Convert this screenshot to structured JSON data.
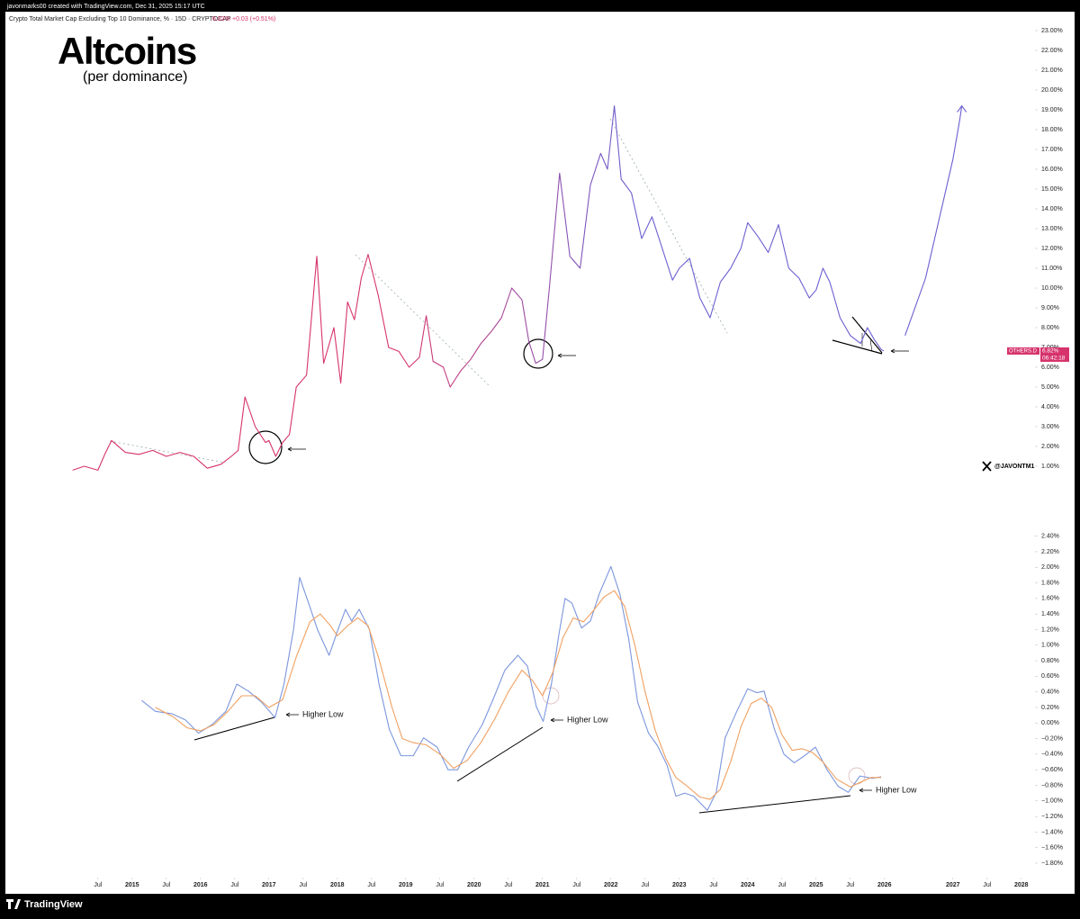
{
  "header": {
    "author": "javonmarks00 created with TradingView.com, Dec 31, 2025 15:17 UTC",
    "symbol": "Crypto Total Market Cap Excluding Top 10 Dominance, % · 15D · CRYPTOCAP",
    "last": "6.82%",
    "change": "+0.03 (+0.51%)"
  },
  "watermark": "@JAVONTM1",
  "footer": {
    "brand": "TradingView"
  },
  "chart_data": [
    {
      "type": "line",
      "title": "Altcoins",
      "subtitle": "(per dominance)",
      "xlim": [
        2013.2,
        2028.2
      ],
      "ylim": [
        -1.5,
        23.5
      ],
      "yticks": [
        {
          "value": 1,
          "label": "1.00%"
        },
        {
          "value": 2,
          "label": "2.00%"
        },
        {
          "value": 3,
          "label": "3.00%"
        },
        {
          "value": 4,
          "label": "4.00%"
        },
        {
          "value": 5,
          "label": "5.00%"
        },
        {
          "value": 6,
          "label": "6.00%"
        },
        {
          "value": 7,
          "label": "7.00%"
        },
        {
          "value": 8,
          "label": "8.00%"
        },
        {
          "value": 9,
          "label": "9.00%"
        },
        {
          "value": 10,
          "label": "10.00%"
        },
        {
          "value": 11,
          "label": "11.00%"
        },
        {
          "value": 12,
          "label": "12.00%"
        },
        {
          "value": 13,
          "label": "13.00%"
        },
        {
          "value": 14,
          "label": "14.00%"
        },
        {
          "value": 15,
          "label": "15.00%"
        },
        {
          "value": 16,
          "label": "16.00%"
        },
        {
          "value": 17,
          "label": "17.00%"
        },
        {
          "value": 18,
          "label": "18.00%"
        },
        {
          "value": 19,
          "label": "19.00%"
        },
        {
          "value": 20,
          "label": "20.00%"
        },
        {
          "value": 21,
          "label": "21.00%"
        },
        {
          "value": 22,
          "label": "22.00%"
        },
        {
          "value": 23,
          "label": "23.00%"
        }
      ],
      "grid": false,
      "series": [
        {
          "name": "OTHERS.D",
          "color": "#d6336c",
          "color_end": "#6b5fd0",
          "x": [
            2014.13,
            2014.3,
            2014.5,
            2014.6,
            2014.7,
            2014.9,
            2015.1,
            2015.3,
            2015.5,
            2015.7,
            2015.9,
            2016.0,
            2016.1,
            2016.3,
            2016.45,
            2016.55,
            2016.65,
            2016.8,
            2016.95,
            2017.0,
            2017.1,
            2017.2,
            2017.3,
            2017.4,
            2017.55,
            2017.7,
            2017.8,
            2017.95,
            2018.05,
            2018.15,
            2018.25,
            2018.35,
            2018.45,
            2018.6,
            2018.75,
            2018.9,
            2019.05,
            2019.2,
            2019.3,
            2019.4,
            2019.55,
            2019.65,
            2019.8,
            2019.95,
            2020.1,
            2020.25,
            2020.4,
            2020.55,
            2020.7,
            2020.8,
            2020.9,
            2021.0,
            2021.1,
            2021.25,
            2021.4,
            2021.55,
            2021.7,
            2021.85,
            2021.95,
            2022.05,
            2022.15,
            2022.3,
            2022.45,
            2022.6,
            2022.75,
            2022.9,
            2023.0,
            2023.15,
            2023.3,
            2023.45,
            2023.6,
            2023.75,
            2023.9,
            2024.0,
            2024.15,
            2024.3,
            2024.45,
            2024.6,
            2024.75,
            2024.9,
            2025.0,
            2025.1,
            2025.2,
            2025.35,
            2025.5,
            2025.65,
            2025.75,
            2025.85,
            2025.95,
            2025.99
          ],
          "values": [
            0.8,
            1.0,
            0.8,
            1.6,
            2.3,
            1.7,
            1.6,
            1.8,
            1.5,
            1.7,
            1.5,
            1.2,
            0.9,
            1.1,
            1.5,
            1.8,
            4.5,
            3.0,
            2.2,
            2.3,
            1.5,
            2.2,
            2.6,
            5.0,
            5.6,
            11.6,
            6.2,
            8.0,
            5.2,
            9.3,
            8.4,
            10.5,
            11.7,
            9.6,
            7.0,
            6.8,
            6.0,
            6.5,
            8.6,
            6.3,
            6.0,
            5.0,
            5.8,
            6.4,
            7.2,
            7.8,
            8.5,
            10.0,
            9.4,
            7.3,
            6.2,
            6.4,
            10.0,
            15.8,
            11.6,
            11.0,
            15.2,
            16.8,
            16.0,
            19.2,
            15.5,
            14.8,
            12.5,
            13.6,
            12.0,
            10.4,
            11.0,
            11.5,
            9.5,
            8.5,
            10.3,
            11.0,
            12.0,
            13.3,
            12.6,
            11.8,
            13.2,
            11.0,
            10.5,
            9.5,
            9.9,
            11.0,
            10.3,
            8.5,
            7.6,
            7.2,
            8.0,
            7.4,
            6.9,
            6.82
          ]
        }
      ],
      "projection": {
        "color": "#6b5fd0",
        "x": [
          2026.3,
          2026.6,
          2026.8,
          2027.0,
          2027.1,
          2027.13
        ],
        "values": [
          7.6,
          10.5,
          13.5,
          16.5,
          18.5,
          19.2
        ]
      },
      "price_tag": {
        "name": "OTHERS.D",
        "value": 6.82,
        "label": "6.82%",
        "countdown": "06:42:18"
      }
    },
    {
      "type": "line",
      "xlim": [
        2013.2,
        2028.2
      ],
      "ylim": [
        -1.95,
        2.5
      ],
      "xticks": [
        {
          "value": 2014.5,
          "label": "Jul"
        },
        2015,
        {
          "value": 2015.5,
          "label": "Jul"
        },
        2016,
        {
          "value": 2016.5,
          "label": "Jul"
        },
        2017,
        {
          "value": 2017.5,
          "label": "Jul"
        },
        2018,
        {
          "value": 2018.5,
          "label": "Jul"
        },
        2019,
        {
          "value": 2019.5,
          "label": "Jul"
        },
        2020,
        {
          "value": 2020.5,
          "label": "Jul"
        },
        2021,
        {
          "value": 2021.5,
          "label": "Jul"
        },
        2022,
        {
          "value": 2022.5,
          "label": "Jul"
        },
        2023,
        {
          "value": 2023.5,
          "label": "Jul"
        },
        2024,
        {
          "value": 2024.5,
          "label": "Jul"
        },
        2025,
        {
          "value": 2025.5,
          "label": "Jul"
        },
        2026,
        2027,
        {
          "value": 2027.5,
          "label": "Jul"
        },
        2028
      ],
      "yticks": [
        {
          "value": 2.4,
          "label": "2.40%"
        },
        {
          "value": 2.2,
          "label": "2.20%"
        },
        {
          "value": 2.0,
          "label": "2.00%"
        },
        {
          "value": 1.8,
          "label": "1.80%"
        },
        {
          "value": 1.6,
          "label": "1.60%"
        },
        {
          "value": 1.4,
          "label": "1.40%"
        },
        {
          "value": 1.2,
          "label": "1.20%"
        },
        {
          "value": 1.0,
          "label": "1.00%"
        },
        {
          "value": 0.8,
          "label": "0.80%"
        },
        {
          "value": 0.6,
          "label": "0.60%"
        },
        {
          "value": 0.4,
          "label": "0.40%"
        },
        {
          "value": 0.2,
          "label": "0.20%"
        },
        {
          "value": 0,
          "label": "0.00%"
        },
        {
          "value": -0.2,
          "label": "−0.20%"
        },
        {
          "value": -0.4,
          "label": "−0.40%"
        },
        {
          "value": -0.6,
          "label": "−0.60%"
        },
        {
          "value": -0.8,
          "label": "−0.80%"
        },
        {
          "value": -1.0,
          "label": "−1.00%"
        },
        {
          "value": -1.2,
          "label": "−1.20%"
        },
        {
          "value": -1.4,
          "label": "−1.40%"
        },
        {
          "value": -1.6,
          "label": "−1.60%"
        },
        {
          "value": -1.8,
          "label": "−1.80%"
        }
      ],
      "grid": false,
      "annotations": [
        "Higher Low",
        "Higher Low",
        "Higher Low"
      ],
      "series": [
        {
          "color": "#7b96dc",
          "x": [
            2015.14,
            2015.34,
            2015.58,
            2015.78,
            2015.97,
            2016.17,
            2016.37,
            2016.53,
            2016.7,
            2016.89,
            2017.09,
            2017.22,
            2017.36,
            2017.45,
            2017.58,
            2017.71,
            2017.88,
            2018.01,
            2018.12,
            2018.21,
            2018.32,
            2018.47,
            2018.61,
            2018.76,
            2018.93,
            2019.11,
            2019.26,
            2019.46,
            2019.62,
            2019.76,
            2019.92,
            2020.12,
            2020.29,
            2020.45,
            2020.64,
            2020.78,
            2020.91,
            2021.01,
            2021.13,
            2021.24,
            2021.33,
            2021.43,
            2021.57,
            2021.7,
            2021.83,
            2022.0,
            2022.13,
            2022.26,
            2022.39,
            2022.55,
            2022.68,
            2022.82,
            2022.95,
            2023.08,
            2023.21,
            2023.41,
            2023.54,
            2023.67,
            2023.84,
            2024.0,
            2024.13,
            2024.24,
            2024.39,
            2024.53,
            2024.68,
            2024.83,
            2024.99,
            2025.16,
            2025.32,
            2025.47,
            2025.64,
            2025.82,
            2025.95
          ],
          "values": [
            0.29,
            0.15,
            0.12,
            0.04,
            -0.13,
            -0.02,
            0.15,
            0.5,
            0.41,
            0.27,
            0.07,
            0.5,
            1.2,
            1.87,
            1.54,
            1.2,
            0.87,
            1.2,
            1.46,
            1.31,
            1.46,
            1.2,
            0.5,
            -0.08,
            -0.42,
            -0.42,
            -0.19,
            -0.31,
            -0.6,
            -0.6,
            -0.31,
            -0.02,
            0.33,
            0.68,
            0.87,
            0.73,
            0.21,
            0.02,
            0.5,
            1.14,
            1.6,
            1.54,
            1.22,
            1.31,
            1.66,
            2.01,
            1.66,
            1.08,
            0.27,
            -0.13,
            -0.29,
            -0.54,
            -0.94,
            -0.9,
            -0.94,
            -1.12,
            -0.89,
            -0.19,
            0.15,
            0.44,
            0.39,
            0.41,
            -0.08,
            -0.4,
            -0.51,
            -0.42,
            -0.31,
            -0.6,
            -0.81,
            -0.89,
            -0.68,
            -0.71,
            -0.69
          ]
        },
        {
          "color": "#f0a060",
          "x": [
            2015.34,
            2015.6,
            2015.8,
            2016.0,
            2016.2,
            2016.4,
            2016.6,
            2016.8,
            2017.0,
            2017.2,
            2017.4,
            2017.6,
            2017.75,
            2017.9,
            2018.0,
            2018.15,
            2018.3,
            2018.45,
            2018.6,
            2018.8,
            2018.95,
            2019.1,
            2019.3,
            2019.5,
            2019.7,
            2019.9,
            2020.1,
            2020.3,
            2020.5,
            2020.7,
            2020.85,
            2021.0,
            2021.15,
            2021.3,
            2021.45,
            2021.6,
            2021.75,
            2021.9,
            2022.05,
            2022.2,
            2022.35,
            2022.5,
            2022.65,
            2022.8,
            2022.95,
            2023.1,
            2023.3,
            2023.45,
            2023.6,
            2023.75,
            2023.9,
            2024.05,
            2024.2,
            2024.35,
            2024.5,
            2024.65,
            2024.8,
            2024.95,
            2025.1,
            2025.3,
            2025.5,
            2025.65,
            2025.8,
            2025.95
          ],
          "values": [
            0.2,
            0.08,
            -0.06,
            -0.1,
            -0.02,
            0.15,
            0.35,
            0.35,
            0.2,
            0.3,
            0.85,
            1.3,
            1.4,
            1.25,
            1.12,
            1.25,
            1.35,
            1.25,
            0.85,
            0.2,
            -0.2,
            -0.25,
            -0.28,
            -0.4,
            -0.58,
            -0.48,
            -0.25,
            0.05,
            0.4,
            0.68,
            0.55,
            0.35,
            0.65,
            1.1,
            1.35,
            1.3,
            1.45,
            1.62,
            1.7,
            1.5,
            1.0,
            0.4,
            -0.1,
            -0.45,
            -0.7,
            -0.8,
            -0.95,
            -0.98,
            -0.85,
            -0.5,
            -0.05,
            0.25,
            0.32,
            0.2,
            -0.15,
            -0.35,
            -0.33,
            -0.38,
            -0.5,
            -0.72,
            -0.82,
            -0.76,
            -0.7,
            -0.7
          ]
        }
      ]
    }
  ]
}
